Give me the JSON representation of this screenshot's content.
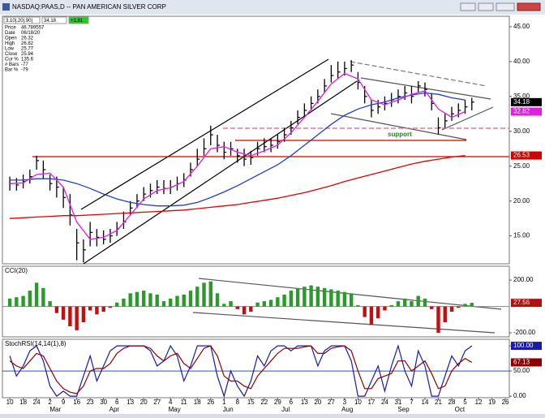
{
  "window": {
    "title": "NASDAQ:PAAS,D -- PAN AMERICAN SILVER CORP"
  },
  "quote_strip": [
    "3.10|.20|.90|",
    "34.18",
    "+1.91"
  ],
  "info_box": [
    [
      "Price",
      "46.789557"
    ],
    [
      "Date",
      "06/18/20"
    ],
    [
      "Open",
      "26.32"
    ],
    [
      "High",
      "26.82"
    ],
    [
      "Low",
      "25.77"
    ],
    [
      "Close",
      "25.94"
    ],
    [
      "Cur %",
      "135.6"
    ],
    [
      "# Bars",
      "-77"
    ],
    [
      "Bar %",
      "-79"
    ]
  ],
  "chart_data": [
    {
      "type": "ohlc",
      "color": "#000000",
      "x": [
        0,
        0.5,
        1,
        1.5,
        2,
        2.5,
        3,
        3.5,
        4,
        4.5,
        5,
        5.5,
        6,
        6.5,
        7,
        7.5,
        8,
        8.5,
        9,
        9.5,
        10,
        10.5,
        11,
        11.5,
        12,
        12.5,
        13,
        13.5,
        14,
        14.5,
        15,
        15.5,
        16,
        16.5,
        17,
        17.5,
        18,
        18.5,
        19,
        19.5,
        20,
        20.5,
        21,
        21.5,
        22,
        22.5,
        23,
        23.5,
        24,
        24.5,
        25,
        25.5,
        26,
        26.5,
        27,
        27.5,
        28,
        28.5,
        29,
        29.5,
        30,
        30.5,
        31,
        31.5,
        32,
        32.5,
        33,
        33.5,
        34,
        34.5
      ],
      "high": [
        23.5,
        23.3,
        23.8,
        24.5,
        26.5,
        25.8,
        23.8,
        23.5,
        22,
        21,
        16,
        14.5,
        17,
        16,
        15.8,
        16,
        17,
        18.5,
        20,
        21,
        22,
        22.5,
        23,
        23,
        23,
        23.5,
        24,
        25.5,
        27.5,
        29,
        30.8,
        29.5,
        28.5,
        28.5,
        27.5,
        27.5,
        27.2,
        28.5,
        29,
        29,
        29.5,
        30.5,
        31.5,
        33,
        34,
        35,
        36,
        37.5,
        39.5,
        40,
        40,
        40.2,
        38.5,
        36.5,
        34.5,
        34.5,
        35,
        35.5,
        36,
        36.5,
        36.5,
        37.2,
        37,
        35.5,
        32,
        32.5,
        33.5,
        34,
        34.5,
        34.8
      ],
      "low": [
        21.5,
        21.5,
        21.8,
        22.5,
        24.5,
        23.2,
        21.5,
        20.5,
        19,
        16.5,
        11.5,
        11.2,
        13.5,
        13.5,
        13.8,
        14,
        15,
        16,
        18,
        19,
        20,
        20.5,
        21,
        21,
        21,
        21.5,
        22,
        23.5,
        25,
        26.5,
        28,
        27,
        26,
        26.5,
        25.5,
        25,
        25.2,
        26.5,
        27,
        27,
        27.5,
        28.5,
        29.5,
        31,
        32,
        33,
        34,
        35.5,
        37,
        37.5,
        38,
        38.5,
        36,
        34,
        32,
        32.5,
        33,
        33.5,
        34,
        34.5,
        34,
        35.5,
        35,
        33,
        29.5,
        30.5,
        31.5,
        32,
        32.5,
        33
      ],
      "close": [
        22.5,
        22.3,
        22.8,
        23.5,
        25.8,
        24.5,
        22.5,
        22,
        20.5,
        18,
        14,
        13,
        15.5,
        14.8,
        14.5,
        15,
        16,
        17,
        19,
        20,
        21,
        21.5,
        22,
        21.8,
        22,
        22.5,
        23,
        24.5,
        26,
        27.5,
        29.5,
        28,
        27,
        27.5,
        26.5,
        26,
        26.2,
        27.5,
        27.8,
        28,
        28.5,
        29.5,
        30.5,
        32,
        33,
        34,
        35,
        36.5,
        38,
        38.5,
        39,
        39.5,
        37,
        35,
        33,
        33.5,
        34,
        34.5,
        35,
        35.5,
        35,
        36.5,
        36,
        34,
        30.5,
        31.5,
        32.5,
        33,
        33.5,
        34.18
      ],
      "ma_x": [
        0,
        1,
        2,
        3,
        4,
        5,
        6,
        7,
        8,
        9,
        10,
        11,
        12,
        13,
        14,
        15,
        16,
        17,
        18,
        19,
        20,
        21,
        22,
        23,
        24,
        25,
        26,
        27,
        28,
        29,
        30,
        31,
        32,
        33,
        34
      ],
      "overlays": [
        {
          "color": "#e00000",
          "values": [
            17.5,
            17.6,
            17.7,
            17.8,
            17.9,
            17.9,
            18,
            18.1,
            18.2,
            18.3,
            18.4,
            18.5,
            18.6,
            18.7,
            18.9,
            19.1,
            19.3,
            19.5,
            19.8,
            20.1,
            20.4,
            20.8,
            21.2,
            21.7,
            22.2,
            22.8,
            23.3,
            23.8,
            24.3,
            24.8,
            25.3,
            25.7,
            26,
            26.3,
            26.53
          ]
        },
        {
          "color": "#2040c8",
          "values": [
            23,
            23,
            23.2,
            23.2,
            23,
            22.5,
            21.8,
            21,
            20.3,
            19.8,
            19.5,
            19.3,
            19.3,
            19.4,
            19.8,
            20.5,
            21.3,
            22.2,
            23.2,
            24.2,
            25.2,
            26.5,
            28,
            29.5,
            31,
            32.3,
            33.2,
            33.8,
            34.2,
            34.8,
            35.2,
            35.5,
            35.3,
            34.8,
            34.5
          ]
        },
        {
          "color": "#e020e0",
          "values": [
            22.5,
            22.6,
            23.8,
            24,
            22,
            17,
            14.5,
            14.8,
            15.8,
            18,
            20.3,
            21.5,
            21.9,
            22.8,
            25,
            27.5,
            27.8,
            27,
            26.5,
            27.2,
            28,
            29.8,
            32,
            34.3,
            36.8,
            38.3,
            37.5,
            34.5,
            33.8,
            34.5,
            35.3,
            35.8,
            33.2,
            32,
            32.82
          ]
        }
      ],
      "xlim": [
        -0.55,
        37.3
      ],
      "ylim": [
        11,
        46.5
      ],
      "yticks": [
        {
          "value": 45,
          "label": "45.00"
        },
        {
          "value": 40,
          "label": "40.00"
        },
        {
          "value": 35,
          "label": "35.00"
        },
        {
          "value": 30,
          "label": "30.00"
        },
        {
          "value": 25,
          "label": "25.00"
        },
        {
          "value": 20,
          "label": "20.00"
        },
        {
          "value": 15,
          "label": "15.00"
        }
      ],
      "value_tags": [
        {
          "value": 34.18,
          "color": "#000000"
        },
        {
          "value": 32.82,
          "color": "#e020e0"
        },
        {
          "value": 26.53,
          "color": "#d00000"
        }
      ],
      "annotation": "support"
    },
    {
      "type": "bar",
      "title": "CCI(20)",
      "positive_color": "#2a9a2a",
      "negative_color": "#c01010",
      "x": [
        0,
        0.5,
        1,
        1.5,
        2,
        2.5,
        3,
        3.5,
        4,
        4.5,
        5,
        5.5,
        6,
        6.5,
        7,
        7.5,
        8,
        8.5,
        9,
        9.5,
        10,
        10.5,
        11,
        11.5,
        12,
        12.5,
        13,
        13.5,
        14,
        14.5,
        15,
        15.5,
        16,
        16.5,
        17,
        17.5,
        18,
        18.5,
        19,
        19.5,
        20,
        20.5,
        21,
        21.5,
        22,
        22.5,
        23,
        23.5,
        24,
        24.5,
        25,
        25.5,
        26,
        26.5,
        27,
        27.5,
        28,
        28.5,
        29,
        29.5,
        30,
        30.5,
        31,
        31.5,
        32,
        32.5,
        33,
        33.5,
        34,
        34.5
      ],
      "values": [
        60,
        70,
        80,
        120,
        180,
        140,
        40,
        -50,
        -100,
        -150,
        -180,
        -120,
        -30,
        -60,
        -40,
        -10,
        30,
        60,
        100,
        110,
        120,
        100,
        90,
        40,
        60,
        80,
        90,
        120,
        150,
        180,
        190,
        100,
        20,
        40,
        -20,
        -60,
        -40,
        30,
        40,
        50,
        70,
        90,
        120,
        140,
        150,
        160,
        150,
        140,
        130,
        120,
        110,
        100,
        10,
        -80,
        -140,
        -90,
        -30,
        10,
        40,
        60,
        40,
        80,
        60,
        -20,
        -200,
        -120,
        -40,
        -10,
        20,
        27.56
      ],
      "reference_line": 0,
      "xlim": [
        -0.55,
        37.3
      ],
      "ylim": [
        -230,
        305
      ],
      "yticks": [
        {
          "value": 200,
          "label": "200.00"
        },
        {
          "value": -200,
          "label": "-200.00"
        }
      ],
      "value_tags": [
        {
          "value": 27.56,
          "color": "#b01010"
        }
      ]
    },
    {
      "type": "line",
      "title": "StochRSI(14,14(1),8)",
      "x": [
        0,
        0.5,
        1,
        1.5,
        2,
        2.5,
        3,
        3.5,
        4,
        4.5,
        5,
        5.5,
        6,
        6.5,
        7,
        7.5,
        8,
        8.5,
        9,
        9.5,
        10,
        10.5,
        11,
        11.5,
        12,
        12.5,
        13,
        13.5,
        14,
        14.5,
        15,
        15.5,
        16,
        16.5,
        17,
        17.5,
        18,
        18.5,
        19,
        19.5,
        20,
        20.5,
        21,
        21.5,
        22,
        22.5,
        23,
        23.5,
        24,
        24.5,
        25,
        25.5,
        26,
        26.5,
        27,
        27.5,
        28,
        28.5,
        29,
        29.5,
        30,
        30.5,
        31,
        31.5,
        32,
        32.5,
        33,
        33.5,
        34,
        34.5
      ],
      "series": [
        {
          "color": "#1a1aa8",
          "values": [
            80,
            40,
            60,
            90,
            100,
            70,
            20,
            0,
            10,
            0,
            0,
            40,
            80,
            30,
            60,
            90,
            100,
            100,
            100,
            100,
            100,
            90,
            60,
            70,
            100,
            80,
            30,
            60,
            100,
            100,
            100,
            40,
            0,
            50,
            20,
            0,
            30,
            80,
            60,
            90,
            100,
            100,
            90,
            100,
            100,
            100,
            60,
            90,
            100,
            100,
            100,
            70,
            0,
            0,
            30,
            60,
            10,
            60,
            100,
            50,
            20,
            90,
            60,
            0,
            0,
            40,
            80,
            60,
            90,
            100
          ]
        },
        {
          "color": "#8b0000",
          "values": [
            70,
            60,
            55,
            70,
            85,
            80,
            55,
            30,
            15,
            8,
            5,
            20,
            50,
            55,
            55,
            65,
            85,
            95,
            100,
            100,
            100,
            95,
            80,
            70,
            80,
            85,
            65,
            55,
            75,
            95,
            100,
            80,
            40,
            30,
            30,
            20,
            15,
            40,
            55,
            70,
            85,
            95,
            95,
            95,
            98,
            100,
            85,
            85,
            95,
            98,
            100,
            90,
            50,
            15,
            15,
            35,
            40,
            45,
            70,
            70,
            50,
            60,
            70,
            45,
            15,
            20,
            50,
            65,
            75,
            67.13
          ]
        }
      ],
      "reference_line": 50,
      "xlim": [
        -0.55,
        37.3
      ],
      "ylim": [
        -3,
        113
      ],
      "yticks": [
        {
          "value": 100,
          "label": "100.00"
        },
        {
          "value": 50,
          "label": "50.00"
        },
        {
          "value": 0,
          "label": "0.00"
        }
      ],
      "value_tags": [
        {
          "value": 100,
          "label": "100.00",
          "color": "#1a1aa8"
        },
        {
          "value": 67.13,
          "color": "#8b0000"
        }
      ],
      "xticks": [
        {
          "value": 0,
          "label": "10"
        },
        {
          "value": 1,
          "label": "18"
        },
        {
          "value": 2,
          "label": "24"
        },
        {
          "value": 3,
          "label": "2"
        },
        {
          "value": 4,
          "label": "9"
        },
        {
          "value": 5,
          "label": "16"
        },
        {
          "value": 6,
          "label": "23"
        },
        {
          "value": 7,
          "label": "30"
        },
        {
          "value": 8,
          "label": "6"
        },
        {
          "value": 9,
          "label": "13"
        },
        {
          "value": 10,
          "label": "20"
        },
        {
          "value": 11,
          "label": "27"
        },
        {
          "value": 12,
          "label": "4"
        },
        {
          "value": 13,
          "label": "11"
        },
        {
          "value": 14,
          "label": "18"
        },
        {
          "value": 15,
          "label": "26"
        },
        {
          "value": 16,
          "label": "1"
        },
        {
          "value": 17,
          "label": "8"
        },
        {
          "value": 18,
          "label": "15"
        },
        {
          "value": 19,
          "label": "22"
        },
        {
          "value": 20,
          "label": "29"
        },
        {
          "value": 21,
          "label": "6"
        },
        {
          "value": 22,
          "label": "13"
        },
        {
          "value": 23,
          "label": "20"
        },
        {
          "value": 24,
          "label": "27"
        },
        {
          "value": 25,
          "label": "3"
        },
        {
          "value": 26,
          "label": "10"
        },
        {
          "value": 27,
          "label": "17"
        },
        {
          "value": 28,
          "label": "24"
        },
        {
          "value": 29,
          "label": "31"
        },
        {
          "value": 30,
          "label": "7"
        },
        {
          "value": 31,
          "label": "14"
        },
        {
          "value": 32,
          "label": "21"
        },
        {
          "value": 33,
          "label": "28"
        },
        {
          "value": 34,
          "label": "5"
        },
        {
          "value": 35,
          "label": "12"
        },
        {
          "value": 36,
          "label": "19"
        },
        {
          "value": 37,
          "label": "26"
        }
      ],
      "month_ticks": [
        {
          "value": 3.4,
          "label": "Mar"
        },
        {
          "value": 7.8,
          "label": "Apr"
        },
        {
          "value": 12.3,
          "label": "May"
        },
        {
          "value": 16.3,
          "label": "Jun"
        },
        {
          "value": 20.6,
          "label": "Jul"
        },
        {
          "value": 25.2,
          "label": "Aug"
        },
        {
          "value": 29.4,
          "label": "Sep"
        },
        {
          "value": 33.6,
          "label": "Oct"
        }
      ]
    }
  ]
}
